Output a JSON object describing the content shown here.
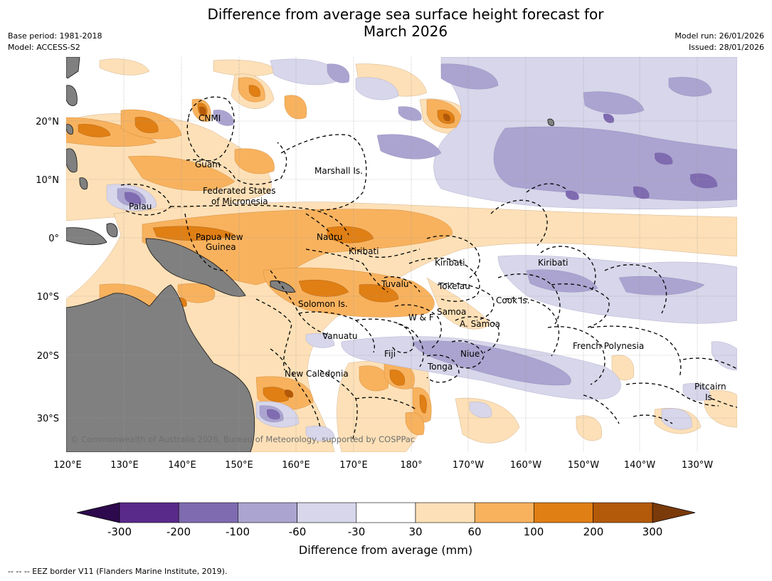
{
  "title_line1": "Difference from average sea surface height forecast for",
  "title_line2": "March 2026",
  "base_period": "Base period: 1981-2018",
  "model": "Model: ACCESS-S2",
  "model_run": "Model run: 26/01/2026",
  "issued": "Issued: 28/01/2026",
  "lat_ticks": [
    "20°N",
    "10°N",
    "0°",
    "10°S",
    "20°S",
    "30°S"
  ],
  "lon_ticks": [
    "120°E",
    "130°E",
    "140°E",
    "150°E",
    "160°E",
    "170°E",
    "180°",
    "170°W",
    "160°W",
    "150°W",
    "140°W",
    "130°W"
  ],
  "places": [
    "CNMI",
    "Guam",
    "Marshall Is.",
    "Federated States",
    "of Micronesia",
    "Palau",
    "Papua New",
    "Guinea",
    "Nauru",
    "Kiribati",
    "Kiribati",
    "Kiribati",
    "Tuvalu",
    "Tokelau",
    "Solomon Is.",
    "Cook Is.",
    "W & F",
    "Samoa",
    "A. Samoa",
    "Vanuatu",
    "Fiji",
    "Niue",
    "French Polynesia",
    "Tonga",
    "New Caledonia",
    "Pitcairn",
    "Is."
  ],
  "copyright": "© Commonwealth of Australia 2026, Bureau of Meteorology, supported by COSPPac",
  "colorbar": {
    "ticks": [
      "-300",
      "-200",
      "-100",
      "-60",
      "-30",
      "30",
      "60",
      "100",
      "200",
      "300"
    ],
    "bin_colors": [
      "#5a2a8a",
      "#7f6bb0",
      "#aba4d0",
      "#d7d6ea",
      "#ffffff",
      "#fde0b7",
      "#f8b25e",
      "#e07f14",
      "#b3590a"
    ],
    "under_color": "#2d0a4e",
    "over_color": "#7a3a0a",
    "label": "Difference from average (mm)"
  },
  "legend_text": "-- -- -- EEZ border V11 (Flanders Marine Institute, 2019).",
  "colors": {
    "land": "#808080",
    "ocean": "#ffffff",
    "grid": "#999999"
  }
}
